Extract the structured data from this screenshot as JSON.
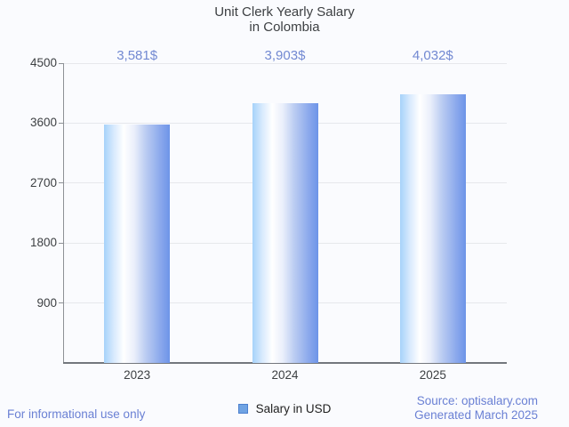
{
  "title": {
    "line1": "Unit Clerk Yearly Salary",
    "line2": "in Colombia"
  },
  "chart_data": {
    "type": "bar",
    "title": "Unit Clerk Yearly Salary in Colombia",
    "categories": [
      "2023",
      "2024",
      "2025"
    ],
    "series": [
      {
        "name": "Salary in USD",
        "values": [
          3581,
          3903,
          4032
        ]
      }
    ],
    "value_labels": [
      "3,581$",
      "3,903$",
      "4,032$"
    ],
    "xlabel": "",
    "ylabel": "",
    "ylim": [
      0,
      4500
    ],
    "yticks": [
      900,
      1800,
      2700,
      3600,
      4500
    ],
    "grid": true,
    "legend_position": "bottom"
  },
  "legend": {
    "label": "Salary in USD"
  },
  "footer": {
    "disclaimer": "For informational use only",
    "source": "Source: optisalary.com",
    "generated": "Generated March 2025"
  },
  "colors": {
    "background": "#fafbfe",
    "title_text": "#3d4043",
    "value_label_text": "#7289d2",
    "axis_label_text": "#3d4043",
    "gridline": "#e6e8ec",
    "y_axis_line": "#8d9196",
    "x_axis_line": "#73777d",
    "bar_gradient": [
      "#a6d2fa",
      "#d8eafd",
      "#ffffff",
      "#eaeffb",
      "#bccdf2",
      "#8aa8ec",
      "#6d94e8"
    ],
    "bar_gradient_stops": [
      0,
      15,
      30,
      46,
      63,
      86,
      100
    ],
    "legend_swatch_fill": "#6fa3e3",
    "legend_swatch_border": "#4c80cf",
    "footer_text": "#6a80d4"
  }
}
